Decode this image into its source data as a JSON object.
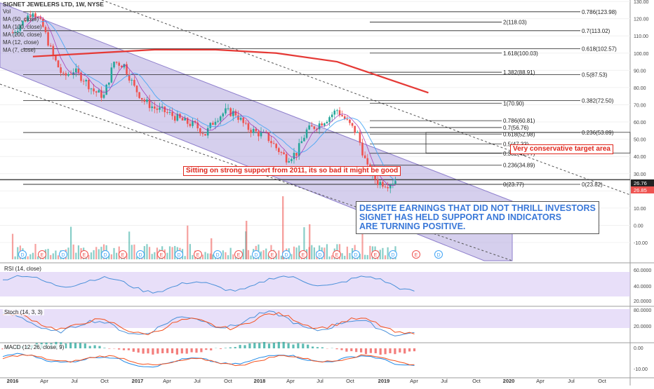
{
  "header": {
    "symbol_title": "SIGNET JEWELERS LTD, 1W, NYSE",
    "vol_label": "Vol",
    "ma_legend": [
      "MA (50, close)",
      "MA (100, close)",
      "MA (200, close)",
      "MA (12, close)",
      "MA (7, close)"
    ]
  },
  "price_axis": {
    "ticks": [
      "130.00",
      "120.00",
      "110.00",
      "100.00",
      "90.00",
      "80.00",
      "70.00",
      "60.00",
      "50.00",
      "40.00",
      "30.00",
      "20.00",
      "10.00",
      "0.00",
      "-10.00"
    ],
    "last_price_tags": [
      "26.76",
      "26.85"
    ]
  },
  "time_axis": {
    "labels": [
      "2016",
      "Apr",
      "Jul",
      "Oct",
      "2017",
      "Apr",
      "Jul",
      "Oct",
      "2018",
      "Apr",
      "Jul",
      "Oct",
      "2019",
      "Apr",
      "Jul",
      "Oct",
      "2020",
      "Apr",
      "Jul",
      "Oct"
    ]
  },
  "fib_levels_left": [
    {
      "label": "0.786(123.98)",
      "price": 124
    },
    {
      "label": "2(118.03)",
      "price": 118
    },
    {
      "label": "0.7(113.02)",
      "price": 113
    },
    {
      "label": "0.618(102.57)",
      "price": 102.6
    },
    {
      "label": "1.618(100.03)",
      "price": 100
    },
    {
      "label": "1.382(88.91)",
      "price": 88.9
    },
    {
      "label": "0.5(87.53)",
      "price": 87.5
    },
    {
      "label": "0.382(72.50)",
      "price": 72.5
    },
    {
      "label": "1(70.90)",
      "price": 70.9
    },
    {
      "label": "0.786(60.81)",
      "price": 60.8
    },
    {
      "label": "0.7(56.76)",
      "price": 56.8
    },
    {
      "label": "0.236(53.89)",
      "price": 53.9
    },
    {
      "label": "0.618(52.98)",
      "price": 53
    },
    {
      "label": "0.5(47.33)",
      "price": 47.3
    },
    {
      "label": "0.382(41.77)",
      "price": 41.8
    },
    {
      "label": "0.236(34.89)",
      "price": 34.9
    },
    {
      "label": "0(23.77)",
      "price": 23.8
    },
    {
      "label": "0(23.82)",
      "price": 23.8
    }
  ],
  "annotations": {
    "target": "Very conservative target area",
    "support": "Sitting on strong support from 2011, its so bad it might be good",
    "note_lines": [
      "DESPITE EARNINGS THAT DID NOT THRILL INVESTORS",
      "SIGNET HAS HELD SUPPORT AND INDICATORS",
      "ARE TURNING POSITIVE."
    ]
  },
  "events": {
    "dividend_letter": "D",
    "earnings_letter": "E"
  },
  "indicators": {
    "rsi": {
      "label": "RSI (14, close)",
      "ticks": [
        "60.0000",
        "40.0000",
        "20.0000"
      ]
    },
    "stoch": {
      "label": "Stoch (14, 3, 3)",
      "ticks": [
        "80.0000",
        "20.0000"
      ]
    },
    "macd": {
      "label": "MACD (12, 26, close, 9)",
      "ticks": [
        "0.00",
        "-10.00"
      ]
    }
  },
  "colors": {
    "up": "#26a69a",
    "down": "#ef5350",
    "channel": "#b3a8de",
    "ma200": "#e53935",
    "ma50": "#42a5f5",
    "ma12": "#9c27b0",
    "note_text": "#3a78d8"
  },
  "chart_data": {
    "type": "candlestick",
    "title": "SIGNET JEWELERS LTD, 1W, NYSE",
    "x_range": [
      "2016-01",
      "2020-12"
    ],
    "ylim": [
      -15,
      132
    ],
    "close_path": [
      {
        "date": "2016-01",
        "close": 112
      },
      {
        "date": "2016-02",
        "close": 118
      },
      {
        "date": "2016-03",
        "close": 125
      },
      {
        "date": "2016-04",
        "close": 115
      },
      {
        "date": "2016-05",
        "close": 98
      },
      {
        "date": "2016-06",
        "close": 86
      },
      {
        "date": "2016-07",
        "close": 90
      },
      {
        "date": "2016-08",
        "close": 85
      },
      {
        "date": "2016-09",
        "close": 78
      },
      {
        "date": "2016-10",
        "close": 75
      },
      {
        "date": "2016-11",
        "close": 95
      },
      {
        "date": "2016-12",
        "close": 93
      },
      {
        "date": "2017-01",
        "close": 80
      },
      {
        "date": "2017-02",
        "close": 72
      },
      {
        "date": "2017-03",
        "close": 68
      },
      {
        "date": "2017-04",
        "close": 66
      },
      {
        "date": "2017-05",
        "close": 63
      },
      {
        "date": "2017-06",
        "close": 60
      },
      {
        "date": "2017-07",
        "close": 58
      },
      {
        "date": "2017-08",
        "close": 53
      },
      {
        "date": "2017-09",
        "close": 62
      },
      {
        "date": "2017-10",
        "close": 66
      },
      {
        "date": "2017-11",
        "close": 65
      },
      {
        "date": "2017-12",
        "close": 57
      },
      {
        "date": "2018-01",
        "close": 54
      },
      {
        "date": "2018-02",
        "close": 52
      },
      {
        "date": "2018-03",
        "close": 45
      },
      {
        "date": "2018-04",
        "close": 39
      },
      {
        "date": "2018-05",
        "close": 42
      },
      {
        "date": "2018-06",
        "close": 55
      },
      {
        "date": "2018-07",
        "close": 58
      },
      {
        "date": "2018-08",
        "close": 62
      },
      {
        "date": "2018-09",
        "close": 67
      },
      {
        "date": "2018-10",
        "close": 60
      },
      {
        "date": "2018-11",
        "close": 53
      },
      {
        "date": "2018-12",
        "close": 33
      },
      {
        "date": "2019-01",
        "close": 25
      },
      {
        "date": "2019-02",
        "close": 24
      },
      {
        "date": "2019-03",
        "close": 27
      }
    ],
    "ma200_path": [
      {
        "date": "2016-03",
        "value": 98
      },
      {
        "date": "2016-09",
        "value": 100
      },
      {
        "date": "2017-03",
        "value": 102
      },
      {
        "date": "2017-09",
        "value": 102
      },
      {
        "date": "2018-03",
        "value": 100
      },
      {
        "date": "2018-09",
        "value": 95
      },
      {
        "date": "2019-03",
        "value": 83
      },
      {
        "date": "2019-06",
        "value": 77
      }
    ],
    "channel": {
      "upper_start": [
        1.0,
        137
      ],
      "upper_end": [
        1.0,
        34
      ],
      "lower_start": [
        0,
        97
      ],
      "lower_end": [
        1.0,
        -5
      ]
    },
    "horizontal_support": 26.5
  }
}
